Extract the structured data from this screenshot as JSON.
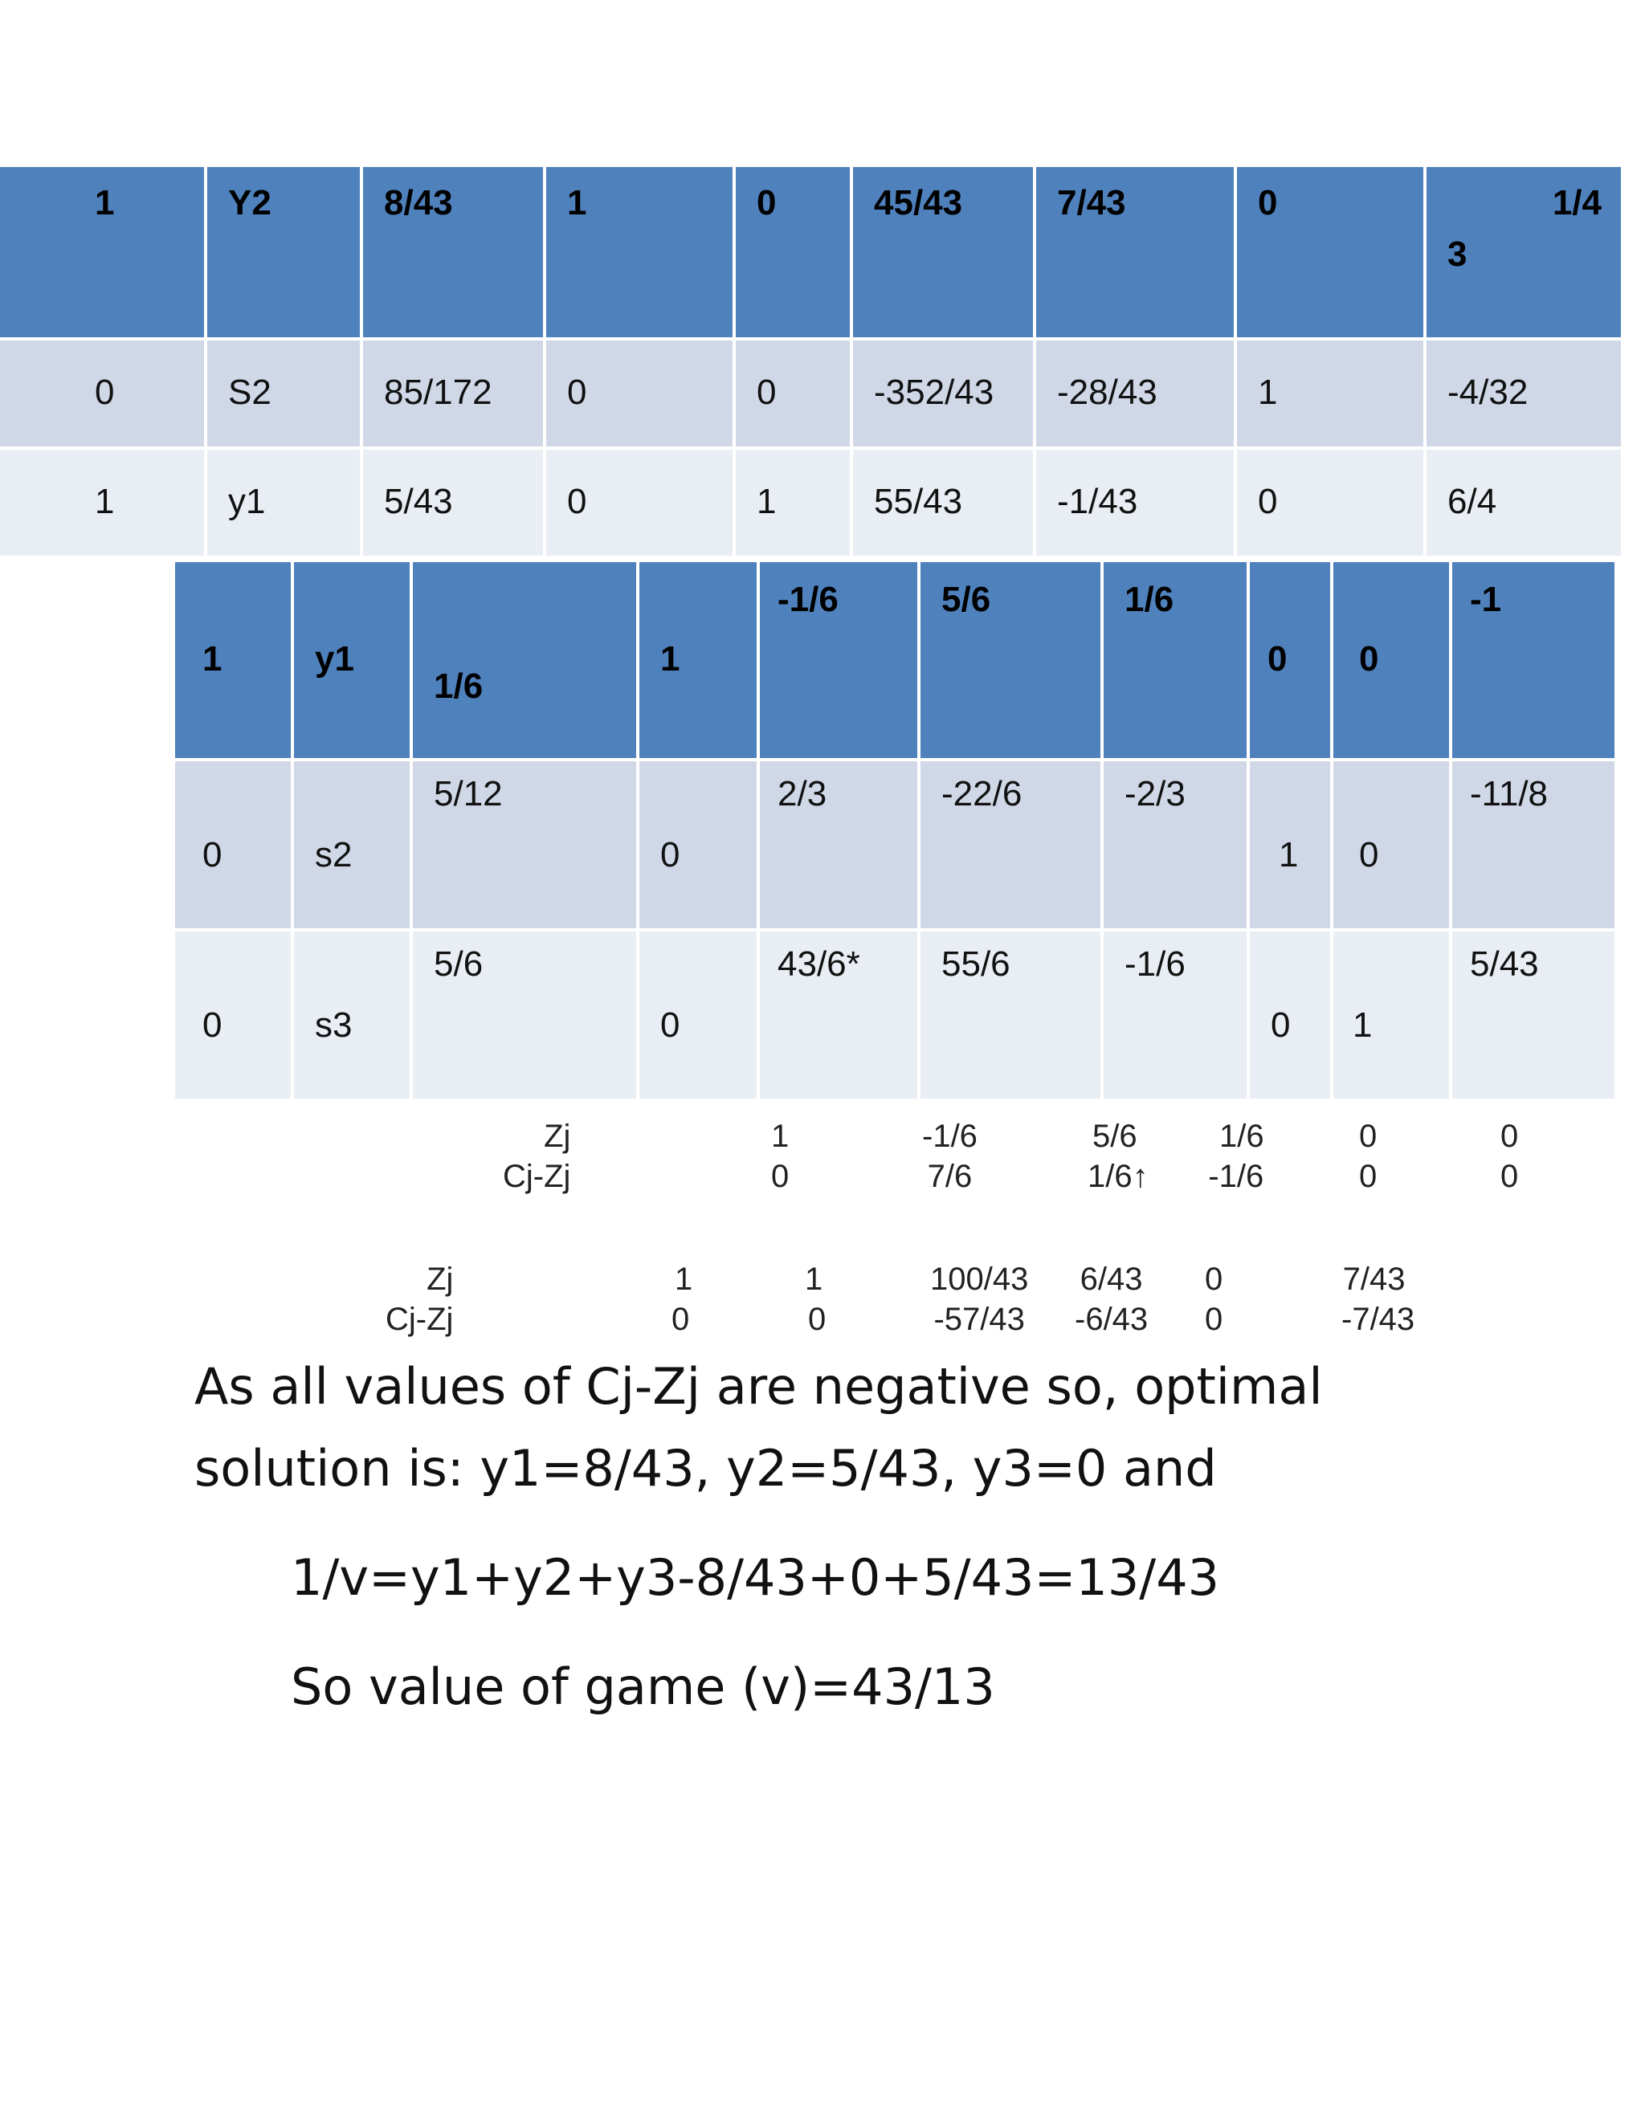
{
  "table1": {
    "header": [
      "1",
      "Y2",
      "8/43",
      "1",
      "0",
      "45/43",
      "7/43",
      "0"
    ],
    "header_last": {
      "top": "1/4",
      "bottom": "3"
    },
    "rows": [
      [
        "0",
        "S2",
        "85/172",
        "0",
        "0",
        "-352/43",
        "-28/43",
        "1",
        "-4/32"
      ],
      [
        "1",
        "y1",
        "5/43",
        "0",
        "1",
        "55/43",
        "-1/43",
        "0",
        "6/4"
      ]
    ]
  },
  "table2": {
    "header": [
      "1",
      "y1",
      "1/6",
      "1",
      "-1/6",
      "5/6",
      "1/6",
      "0",
      "0",
      "-1"
    ],
    "rows": [
      [
        "0",
        "s2",
        "5/12",
        "0",
        "2/3",
        "-22/6",
        "-2/3",
        "1",
        "0",
        "-11/8"
      ],
      [
        "0",
        "s3",
        "5/6",
        "0",
        "43/6*",
        "55/6",
        "-1/6",
        "0",
        "1",
        "5/43"
      ]
    ]
  },
  "calc1": {
    "labels": [
      "Zj",
      "Cj-Zj"
    ],
    "columns": [
      [
        "1",
        "0"
      ],
      [
        "-1/6",
        "7/6"
      ],
      [
        "5/6",
        "1/6↑"
      ],
      [
        "1/6",
        "-1/6"
      ],
      [
        "0",
        "0"
      ],
      [
        "0",
        "0"
      ]
    ]
  },
  "calc2": {
    "labels": [
      "Zj",
      "Cj-Zj"
    ],
    "columns": [
      [
        "1",
        "0"
      ],
      [
        "1",
        "0"
      ],
      [
        "100/43",
        "-57/43"
      ],
      [
        "6/43",
        "-6/43"
      ],
      [
        "0",
        "0"
      ],
      [
        "7/43",
        "-7/43"
      ]
    ]
  },
  "text": {
    "line1": "As all values of Cj-Zj are negative so, optimal",
    "line2": "solution is: y1=8/43, y2=5/43, y3=0 and",
    "line3": "1/v=y1+y2+y3-8/43+0+5/43=13/43",
    "line4": "So value of game (v)=43/13"
  }
}
